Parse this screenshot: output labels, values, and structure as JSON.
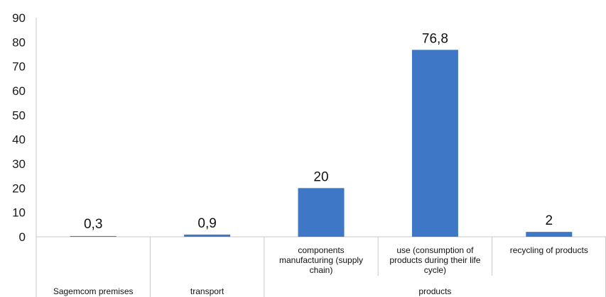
{
  "chart_data": {
    "type": "bar",
    "title": "",
    "xlabel": "",
    "ylabel": "",
    "ylim": [
      0,
      90
    ],
    "yticks": [
      0,
      10,
      20,
      30,
      40,
      50,
      60,
      70,
      80,
      90
    ],
    "grid": false,
    "legend": "none",
    "bar_color": "#3f77c7",
    "categories": [
      {
        "label": [
          "",
          "",
          "",
          ""
        ],
        "group": "Sagemcom premises",
        "value": 0.3,
        "value_label": "0,3"
      },
      {
        "label": [
          "",
          "",
          "",
          ""
        ],
        "group": "transport",
        "value": 0.9,
        "value_label": "0,9"
      },
      {
        "label": [
          "components",
          "manufacturing (supply",
          "chain)"
        ],
        "group": "products",
        "value": 20,
        "value_label": "20"
      },
      {
        "label": [
          "use (consumption of",
          "products during their life",
          "cycle)"
        ],
        "group": "products",
        "value": 76.8,
        "value_label": "76,8"
      },
      {
        "label": [
          "recycling of products"
        ],
        "group": "products",
        "value": 2,
        "value_label": "2"
      }
    ],
    "groups": [
      {
        "name": "Sagemcom premises",
        "span": [
          0,
          0
        ]
      },
      {
        "name": "transport",
        "span": [
          1,
          1
        ]
      },
      {
        "name": "products",
        "span": [
          2,
          4
        ]
      }
    ]
  }
}
